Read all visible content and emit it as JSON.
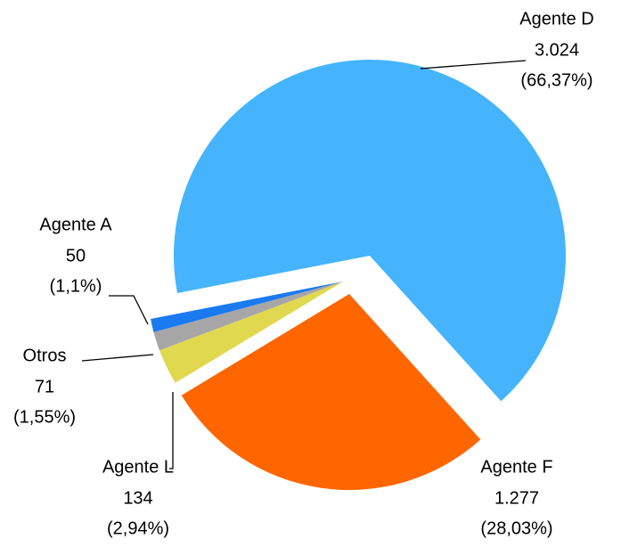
{
  "chart_data": {
    "type": "pie",
    "categories": [
      "Agente D",
      "Agente F",
      "Agente L",
      "Otros",
      "Agente A"
    ],
    "values": [
      3024,
      1277,
      134,
      71,
      50
    ],
    "value_labels": [
      "3.024",
      "1.277",
      "134",
      "71",
      "50"
    ],
    "percents": [
      66.37,
      28.03,
      2.94,
      1.55,
      1.1
    ],
    "percent_labels": [
      "(66,37%)",
      "(28,03%)",
      "(2,94%)",
      "(1,55%)",
      "(1,1%)"
    ],
    "colors": [
      "#45b4fd",
      "#ff6600",
      "#e0d94f",
      "#a6a6a6",
      "#1a7af0"
    ]
  }
}
